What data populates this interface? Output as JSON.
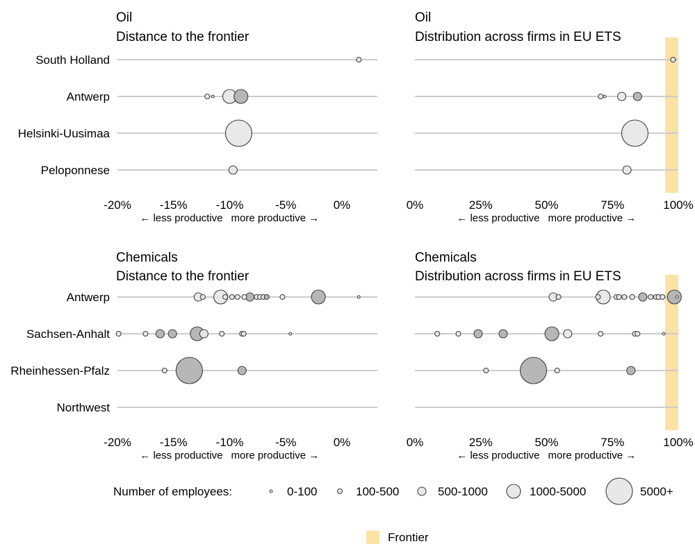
{
  "colors": {
    "frontier": "#fbe2a6",
    "bubble_light": "#e8e8e8",
    "bubble_dark": "#b3b3b3",
    "bubble_stroke": "#404040",
    "gridline": "#cccccc"
  },
  "chart_data": [
    {
      "panel": "oil-distance",
      "type": "scatter",
      "title": [
        "Oil",
        "Distance to the frontier"
      ],
      "xlim": [
        -20,
        1.5
      ],
      "xticks": [
        -20,
        -15,
        -10,
        -5,
        0
      ],
      "xtick_labels": [
        "-20%",
        "-15%",
        "-10%",
        "-5%",
        "0%"
      ],
      "direction_labels": [
        "← less productive",
        "more productive →"
      ],
      "rows": [
        "South Holland",
        "Antwerp",
        "Helsinki-Uusimaa",
        "Peloponnese"
      ],
      "points": [
        {
          "row": 0,
          "x": 1.5,
          "size": 1,
          "shade": "light"
        },
        {
          "row": 1,
          "x": -12,
          "size": 1,
          "shade": "light"
        },
        {
          "row": 1,
          "x": -11.5,
          "size": 0,
          "shade": "light"
        },
        {
          "row": 1,
          "x": -10,
          "size": 3,
          "shade": "light"
        },
        {
          "row": 1,
          "x": -9,
          "size": 3,
          "shade": "dark"
        },
        {
          "row": 2,
          "x": -9.2,
          "size": 4,
          "shade": "light"
        },
        {
          "row": 3,
          "x": -9.7,
          "size": 2,
          "shade": "light"
        }
      ]
    },
    {
      "panel": "oil-distribution",
      "type": "scatter",
      "title": [
        "Oil",
        "Distribution across firms in EU ETS"
      ],
      "xlim": [
        0,
        100
      ],
      "xticks": [
        0,
        25,
        50,
        75,
        100
      ],
      "xtick_labels": [
        "0%",
        "25%",
        "50%",
        "75%",
        "100%"
      ],
      "direction_labels": [
        "← less productive",
        "more productive →"
      ],
      "frontier": [
        95,
        100
      ],
      "rows": [
        "South Holland",
        "Antwerp",
        "Helsinki-Uusimaa",
        "Peloponnese"
      ],
      "points": [
        {
          "row": 0,
          "x": 98,
          "size": 1,
          "shade": "light"
        },
        {
          "row": 1,
          "x": 70.5,
          "size": 1,
          "shade": "light"
        },
        {
          "row": 1,
          "x": 72,
          "size": 0,
          "shade": "light"
        },
        {
          "row": 1,
          "x": 78.5,
          "size": 2,
          "shade": "light"
        },
        {
          "row": 1,
          "x": 84.5,
          "size": 2,
          "shade": "dark"
        },
        {
          "row": 2,
          "x": 83.5,
          "size": 4,
          "shade": "light"
        },
        {
          "row": 3,
          "x": 80.5,
          "size": 2,
          "shade": "light"
        }
      ]
    },
    {
      "panel": "chem-distance",
      "type": "scatter",
      "title": [
        "Chemicals",
        "Distance to the frontier"
      ],
      "xlim": [
        -20,
        1.5
      ],
      "xticks": [
        -20,
        -15,
        -10,
        -5,
        0
      ],
      "xtick_labels": [
        "-20%",
        "-15%",
        "-10%",
        "-5%",
        "0%"
      ],
      "direction_labels": [
        "← less productive",
        "more productive →"
      ],
      "rows": [
        "Antwerp",
        "Sachsen-Anhalt",
        "Rheinhessen-Pfalz",
        "Northwest"
      ],
      "points": [
        {
          "row": 0,
          "x": -12.8,
          "size": 2,
          "shade": "light"
        },
        {
          "row": 0,
          "x": -12.4,
          "size": 1,
          "shade": "light"
        },
        {
          "row": 0,
          "x": -10.8,
          "size": 3,
          "shade": "light"
        },
        {
          "row": 0,
          "x": -10.4,
          "size": 1,
          "shade": "light"
        },
        {
          "row": 0,
          "x": -9.8,
          "size": 1,
          "shade": "light"
        },
        {
          "row": 0,
          "x": -9.3,
          "size": 1,
          "shade": "light"
        },
        {
          "row": 0,
          "x": -8.7,
          "size": 1,
          "shade": "light"
        },
        {
          "row": 0,
          "x": -8.2,
          "size": 2,
          "shade": "dark"
        },
        {
          "row": 0,
          "x": -7.6,
          "size": 1,
          "shade": "light"
        },
        {
          "row": 0,
          "x": -7.3,
          "size": 1,
          "shade": "light"
        },
        {
          "row": 0,
          "x": -7.0,
          "size": 1,
          "shade": "light"
        },
        {
          "row": 0,
          "x": -6.7,
          "size": 1,
          "shade": "dark"
        },
        {
          "row": 0,
          "x": -5.3,
          "size": 1,
          "shade": "light"
        },
        {
          "row": 0,
          "x": -2.1,
          "size": 3,
          "shade": "dark"
        },
        {
          "row": 0,
          "x": 1.5,
          "size": 0,
          "shade": "light"
        },
        {
          "row": 1,
          "x": -19.9,
          "size": 1,
          "shade": "light"
        },
        {
          "row": 1,
          "x": -17.5,
          "size": 1,
          "shade": "light"
        },
        {
          "row": 1,
          "x": -16.2,
          "size": 2,
          "shade": "dark"
        },
        {
          "row": 1,
          "x": -15.1,
          "size": 2,
          "shade": "dark"
        },
        {
          "row": 1,
          "x": -12.9,
          "size": 3,
          "shade": "dark"
        },
        {
          "row": 1,
          "x": -12.3,
          "size": 2,
          "shade": "light"
        },
        {
          "row": 1,
          "x": -10.7,
          "size": 1,
          "shade": "light"
        },
        {
          "row": 1,
          "x": -8.9,
          "size": 1,
          "shade": "light"
        },
        {
          "row": 1,
          "x": -8.75,
          "size": 1,
          "shade": "light"
        },
        {
          "row": 1,
          "x": -4.6,
          "size": 0,
          "shade": "light"
        },
        {
          "row": 2,
          "x": -15.8,
          "size": 1,
          "shade": "light"
        },
        {
          "row": 2,
          "x": -13.6,
          "size": 4,
          "shade": "dark"
        },
        {
          "row": 2,
          "x": -8.9,
          "size": 2,
          "shade": "dark"
        }
      ]
    },
    {
      "panel": "chem-distribution",
      "type": "scatter",
      "title": [
        "Chemicals",
        "Distribution across firms in EU ETS"
      ],
      "xlim": [
        0,
        100
      ],
      "xticks": [
        0,
        25,
        50,
        75,
        100
      ],
      "xtick_labels": [
        "0%",
        "25%",
        "50%",
        "75%",
        "100%"
      ],
      "direction_labels": [
        "← less productive",
        "more productive →"
      ],
      "frontier": [
        95,
        100
      ],
      "rows": [
        "Antwerp",
        "Sachsen-Anhalt",
        "Rheinhessen-Pfalz",
        "Northwest"
      ],
      "points": [
        {
          "row": 0,
          "x": 52.5,
          "size": 2,
          "shade": "light"
        },
        {
          "row": 0,
          "x": 54.5,
          "size": 1,
          "shade": "light"
        },
        {
          "row": 0,
          "x": 69.5,
          "size": 1,
          "shade": "light"
        },
        {
          "row": 0,
          "x": 71.5,
          "size": 3,
          "shade": "light"
        },
        {
          "row": 0,
          "x": 76.5,
          "size": 1,
          "shade": "light"
        },
        {
          "row": 0,
          "x": 77.5,
          "size": 1,
          "shade": "light"
        },
        {
          "row": 0,
          "x": 79.5,
          "size": 1,
          "shade": "light"
        },
        {
          "row": 0,
          "x": 82.5,
          "size": 1,
          "shade": "light"
        },
        {
          "row": 0,
          "x": 86.5,
          "size": 2,
          "shade": "dark"
        },
        {
          "row": 0,
          "x": 89.5,
          "size": 1,
          "shade": "light"
        },
        {
          "row": 0,
          "x": 91.5,
          "size": 1,
          "shade": "light"
        },
        {
          "row": 0,
          "x": 92.5,
          "size": 1,
          "shade": "light"
        },
        {
          "row": 0,
          "x": 94.0,
          "size": 1,
          "shade": "light"
        },
        {
          "row": 0,
          "x": 98.5,
          "size": 3,
          "shade": "dark"
        },
        {
          "row": 0,
          "x": 99.5,
          "size": 0,
          "shade": "light"
        },
        {
          "row": 1,
          "x": 8.5,
          "size": 1,
          "shade": "light"
        },
        {
          "row": 1,
          "x": 16.5,
          "size": 1,
          "shade": "light"
        },
        {
          "row": 1,
          "x": 24.0,
          "size": 2,
          "shade": "dark"
        },
        {
          "row": 1,
          "x": 33.5,
          "size": 2,
          "shade": "dark"
        },
        {
          "row": 1,
          "x": 52.0,
          "size": 3,
          "shade": "dark"
        },
        {
          "row": 1,
          "x": 58.0,
          "size": 2,
          "shade": "light"
        },
        {
          "row": 1,
          "x": 70.5,
          "size": 1,
          "shade": "light"
        },
        {
          "row": 1,
          "x": 83.5,
          "size": 1,
          "shade": "light"
        },
        {
          "row": 1,
          "x": 84.5,
          "size": 1,
          "shade": "light"
        },
        {
          "row": 1,
          "x": 94.5,
          "size": 0,
          "shade": "light"
        },
        {
          "row": 2,
          "x": 27.0,
          "size": 1,
          "shade": "light"
        },
        {
          "row": 2,
          "x": 45.0,
          "size": 4,
          "shade": "dark"
        },
        {
          "row": 2,
          "x": 54.0,
          "size": 1,
          "shade": "light"
        },
        {
          "row": 2,
          "x": 82.0,
          "size": 2,
          "shade": "dark"
        }
      ]
    }
  ],
  "legend": {
    "title": "Number of employees:",
    "sizes": [
      {
        "label": "0-100",
        "size": 0
      },
      {
        "label": "100-500",
        "size": 1
      },
      {
        "label": "500-1000",
        "size": 2
      },
      {
        "label": "1000-5000",
        "size": 3
      },
      {
        "label": "5000+",
        "size": 4
      }
    ],
    "frontier_label": "Frontier"
  }
}
